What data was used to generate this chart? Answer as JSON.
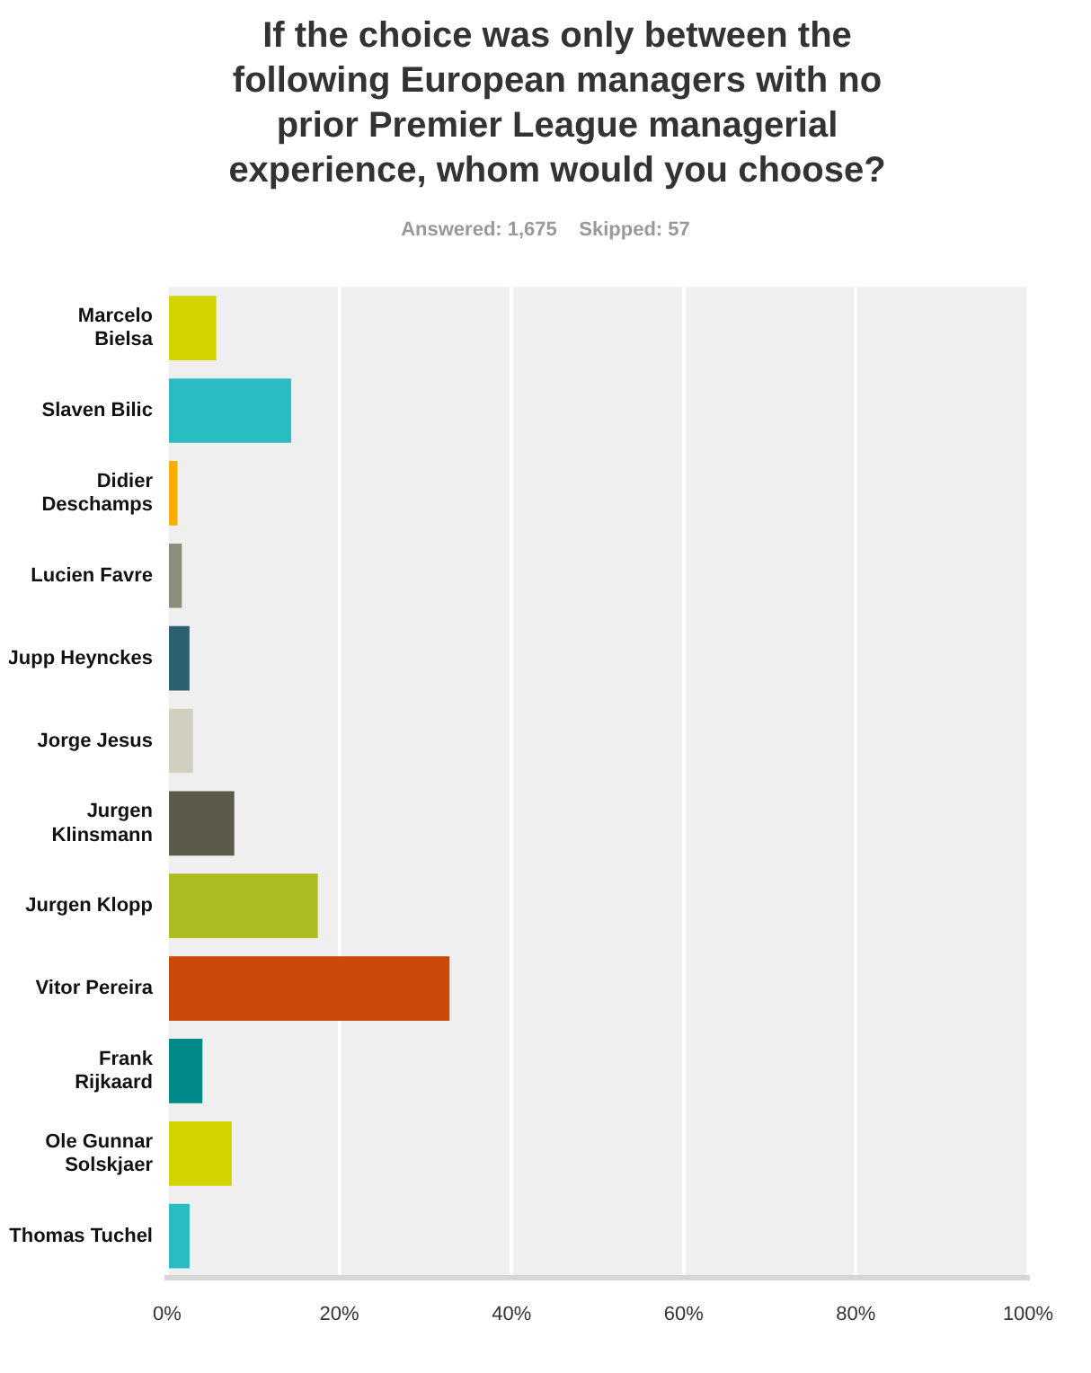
{
  "chart_data": {
    "type": "bar",
    "orientation": "horizontal",
    "title": "If the choice was only between the following European managers with no prior Premier League managerial experience, whom would you choose?",
    "subtitle": "Answered: 1,675    Skipped: 57",
    "categories": [
      "Marcelo Bielsa",
      "Slaven Bilic",
      "Didier Deschamps",
      "Lucien Favre",
      "Jupp Heynckes",
      "Jorge Jesus",
      "Jurgen Klinsmann",
      "Jurgen Klopp",
      "Vitor Pereira",
      "Frank Rijkaard",
      "Ole Gunnar Solskjaer",
      "Thomas Tuchel"
    ],
    "values": [
      5.7,
      14.4,
      1.2,
      1.7,
      2.6,
      3.0,
      7.8,
      17.5,
      32.8,
      4.1,
      7.5,
      2.6
    ],
    "colors": [
      "#d3d300",
      "#29bdc1",
      "#f7ae00",
      "#8d8d7d",
      "#2e6170",
      "#d0cfc0",
      "#5c5a4b",
      "#adbd21",
      "#cc4808",
      "#008a8a",
      "#d3d300",
      "#29bdc1"
    ],
    "xlim": [
      0,
      100
    ],
    "xticks": [
      {
        "value": 0,
        "label": "0%"
      },
      {
        "value": 20,
        "label": "20%"
      },
      {
        "value": 40,
        "label": "40%"
      },
      {
        "value": 60,
        "label": "60%"
      },
      {
        "value": 80,
        "label": "80%"
      },
      {
        "value": 100,
        "label": "100%"
      }
    ],
    "grid": "x"
  }
}
